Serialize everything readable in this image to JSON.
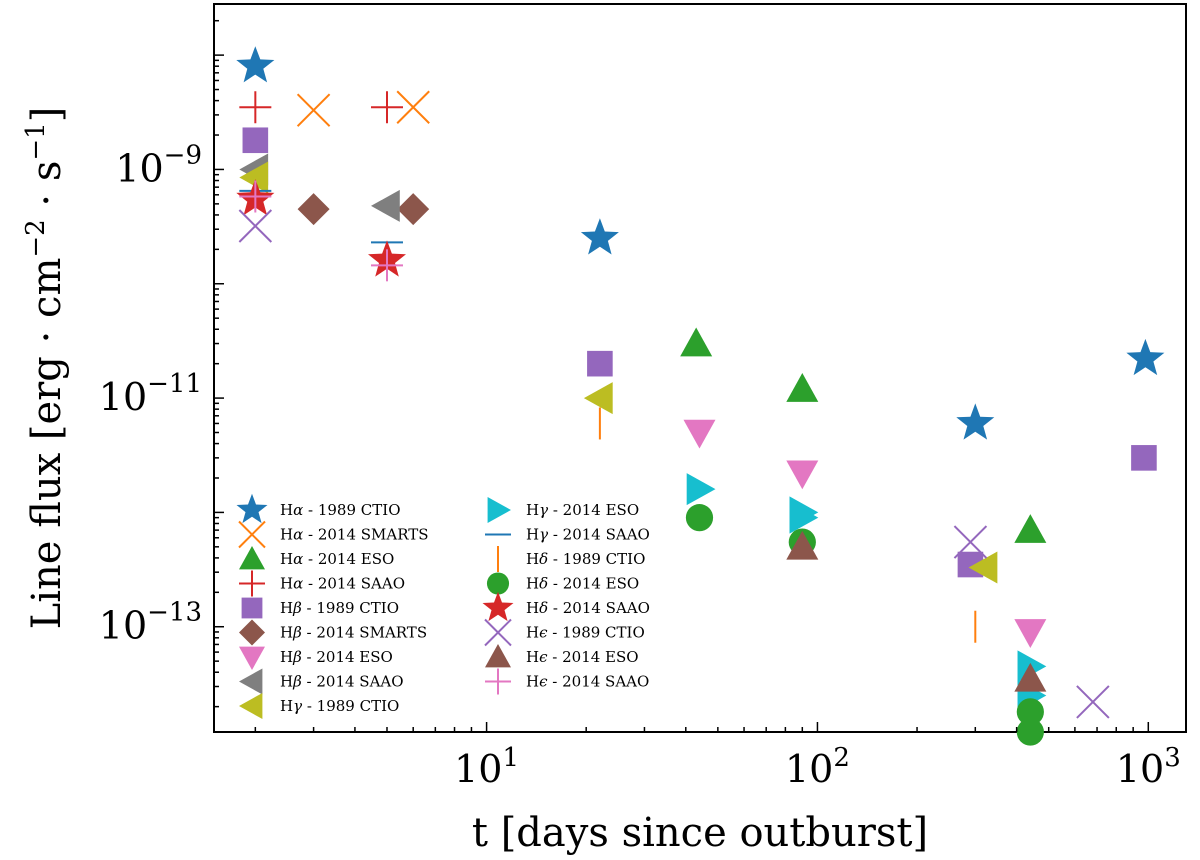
{
  "chart_data": {
    "type": "scatter",
    "xscale": "log",
    "yscale": "log",
    "xlim": [
      1.5,
      1300
    ],
    "ylim": [
      1.2e-14,
      2.8e-08
    ],
    "xlabel": "t [days since outburst]",
    "ylabel_main": "Line flux [erg · cm",
    "ylabel_exp1": "−2",
    "ylabel_mid": " · s",
    "ylabel_exp2": "−1",
    "ylabel_end": "]",
    "x_ticks": [
      {
        "value": 10,
        "base": "10",
        "exp": "1"
      },
      {
        "value": 100,
        "base": "10",
        "exp": "2"
      },
      {
        "value": 1000,
        "base": "10",
        "exp": "3"
      }
    ],
    "y_ticks": [
      {
        "value": 1e-09,
        "base": "10",
        "exp": "−9"
      },
      {
        "value": 1e-11,
        "base": "10",
        "exp": "−11"
      },
      {
        "value": 1e-13,
        "base": "10",
        "exp": "−13"
      }
    ],
    "series": [
      {
        "name": "Hα - 1989 CTIO",
        "base": "H",
        "greek": "α",
        "suffix": " - 1989 CTIO",
        "marker": "star",
        "color": "#1f77b4",
        "x": [
          2,
          22,
          300,
          980
        ],
        "y": [
          8e-09,
          2.5e-10,
          6e-12,
          2.2e-11
        ]
      },
      {
        "name": "Hα - 2014 SMARTS",
        "base": "H",
        "greek": "α",
        "suffix": " - 2014 SMARTS",
        "marker": "x",
        "color": "#ff7f0e",
        "x": [
          3,
          6
        ],
        "y": [
          3.3e-09,
          3.5e-09
        ]
      },
      {
        "name": "Hα - 2014 ESO",
        "base": "H",
        "greek": "α",
        "suffix": " - 2014 ESO",
        "marker": "triangle-up",
        "color": "#2ca02c",
        "x": [
          43,
          90,
          440
        ],
        "y": [
          3e-11,
          1.2e-11,
          7e-13
        ]
      },
      {
        "name": "Hα - 2014 SAAO",
        "base": "H",
        "greek": "α",
        "suffix": " - 2014 SAAO",
        "marker": "plus",
        "color": "#d62728",
        "x": [
          2,
          5
        ],
        "y": [
          3.5e-09,
          3.5e-09
        ]
      },
      {
        "name": "Hβ - 1989 CTIO",
        "base": "H",
        "greek": "β",
        "suffix": " - 1989 CTIO",
        "marker": "square",
        "color": "#9467bd",
        "x": [
          2,
          22,
          290,
          970
        ],
        "y": [
          1.8e-09,
          2e-11,
          3.5e-13,
          3e-12
        ]
      },
      {
        "name": "Hβ - 2014 SMARTS",
        "base": "H",
        "greek": "β",
        "suffix": " - 2014 SMARTS",
        "marker": "diamond",
        "color": "#8c564b",
        "x": [
          3,
          6
        ],
        "y": [
          4.5e-10,
          4.5e-10
        ]
      },
      {
        "name": "Hβ - 2014 ESO",
        "base": "H",
        "greek": "β",
        "suffix": " - 2014 ESO",
        "marker": "triangle-down",
        "color": "#e377c2",
        "x": [
          44,
          90,
          440
        ],
        "y": [
          5e-12,
          2.2e-12,
          9e-14
        ]
      },
      {
        "name": "Hβ - 2014 SAAO",
        "base": "H",
        "greek": "β",
        "suffix": " - 2014 SAAO",
        "marker": "triangle-left",
        "color": "#7f7f7f",
        "x": [
          2,
          5
        ],
        "y": [
          1e-09,
          4.8e-10
        ]
      },
      {
        "name": "Hγ - 1989 CTIO",
        "base": "H",
        "greek": "γ",
        "suffix": " - 1989 CTIO",
        "marker": "triangle-left",
        "color": "#bcbd22",
        "x": [
          2,
          22,
          320
        ],
        "y": [
          8.5e-10,
          1e-11,
          3.3e-13
        ]
      },
      {
        "name": "Hγ - 2014 ESO",
        "base": "H",
        "greek": "γ",
        "suffix": " - 2014 ESO",
        "marker": "triangle-right",
        "color": "#17becf",
        "x": [
          44,
          90,
          90,
          440,
          440
        ],
        "y": [
          1.6e-12,
          1e-12,
          9e-13,
          4.5e-14,
          2.5e-14
        ]
      },
      {
        "name": "Hγ - 2014 SAAO",
        "base": "H",
        "greek": "γ",
        "suffix": " - 2014 SAAO",
        "marker": "hline",
        "color": "#1f77b4",
        "x": [
          2,
          5
        ],
        "y": [
          6.5e-10,
          2.3e-10
        ]
      },
      {
        "name": "Hδ - 1989 CTIO",
        "base": "H",
        "greek": "δ",
        "suffix": " - 1989 CTIO",
        "marker": "vline",
        "color": "#ff7f0e",
        "x": [
          22,
          300
        ],
        "y": [
          6e-12,
          1e-13
        ]
      },
      {
        "name": "Hδ - 2014 ESO",
        "base": "H",
        "greek": "δ",
        "suffix": " - 2014 ESO",
        "marker": "circle",
        "color": "#2ca02c",
        "x": [
          44,
          90,
          440,
          440
        ],
        "y": [
          9e-13,
          5.5e-13,
          1.8e-14,
          1.2e-14
        ]
      },
      {
        "name": "Hδ - 2014 SAAO",
        "base": "H",
        "greek": "δ",
        "suffix": " - 2014 SAAO",
        "marker": "star",
        "color": "#d62728",
        "x": [
          2,
          5
        ],
        "y": [
          5.5e-10,
          1.6e-10
        ]
      },
      {
        "name": "Hϵ - 1989 CTIO",
        "base": "H",
        "greek": "ϵ",
        "suffix": " - 1989 CTIO",
        "marker": "x",
        "color": "#9467bd",
        "x": [
          2,
          290,
          680
        ],
        "y": [
          3.2e-10,
          5.5e-13,
          2.2e-14
        ]
      },
      {
        "name": "Hϵ - 2014 ESO",
        "base": "H",
        "greek": "ϵ",
        "suffix": " - 2014 ESO",
        "marker": "triangle-up",
        "color": "#8c564b",
        "x": [
          90,
          440
        ],
        "y": [
          5e-13,
          3.5e-14
        ]
      },
      {
        "name": "Hϵ - 2014 SAAO",
        "base": "H",
        "greek": "ϵ",
        "suffix": " - 2014 SAAO",
        "marker": "plus",
        "color": "#e377c2",
        "x": [
          2,
          5
        ],
        "y": [
          5.8e-10,
          1.45e-10
        ]
      }
    ],
    "legend": {
      "location": "lower-left",
      "columns": 2
    }
  }
}
